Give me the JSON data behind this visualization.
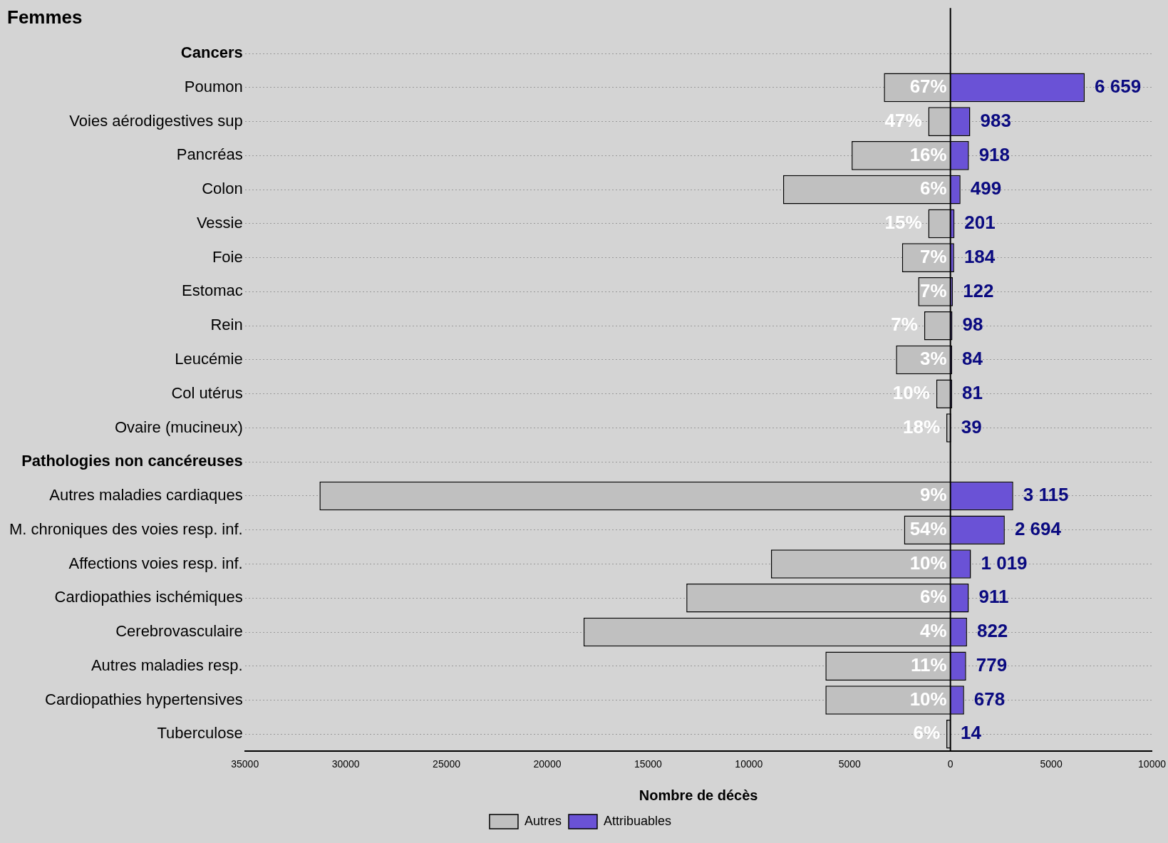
{
  "chart_data": {
    "type": "bar",
    "orientation": "horizontal",
    "stacked": true,
    "title": "Femmes",
    "xlabel": "Nombre de décès",
    "categories": [
      "Cancers",
      "Poumon",
      "Voies aérodigestives sup",
      "Pancréas",
      "Colon",
      "Vessie",
      "Foie",
      "Estomac",
      "Rein",
      "Leucémie",
      "Col utérus",
      "Ovaire (mucineux)",
      "Pathologies non cancéreuses",
      "Autres maladies cardiaques",
      "M. chroniques des voies resp. inf.",
      "Affections voies resp. inf.",
      "Cardiopathies ischémiques",
      "Cerebrovasculaire",
      "Autres maladies resp.",
      "Cardiopathies hypertensives",
      "Tuberculose"
    ],
    "series": [
      {
        "name": "Autres",
        "color": "#c0c0c0",
        "values": [
          null,
          -3300,
          -1100,
          -4900,
          -8300,
          -1100,
          -2400,
          -1600,
          -1300,
          -2700,
          -700,
          -200,
          null,
          -31300,
          -2300,
          -8900,
          -13100,
          -18200,
          -6200,
          -6200,
          -200
        ]
      },
      {
        "name": "Attribuables",
        "color": "#6a52d6",
        "values": [
          null,
          6659,
          983,
          918,
          499,
          201,
          184,
          122,
          98,
          84,
          81,
          39,
          null,
          3115,
          2694,
          1019,
          911,
          822,
          779,
          678,
          14
        ],
        "value_labels": [
          null,
          "6 659",
          "983",
          "918",
          "499",
          "201",
          "184",
          "122",
          "98",
          "84",
          "81",
          "39",
          null,
          "3 115",
          "2 694",
          "1 019",
          "911",
          "822",
          "779",
          "678",
          "14"
        ]
      }
    ],
    "xlim": [
      -35000,
      10000
    ],
    "xticks": [
      {
        "value": -35000,
        "label": "35000"
      },
      {
        "value": -30000,
        "label": "30000"
      },
      {
        "value": -25000,
        "label": "25000"
      },
      {
        "value": -20000,
        "label": "20000"
      },
      {
        "value": -15000,
        "label": "15000"
      },
      {
        "value": -10000,
        "label": "10000"
      },
      {
        "value": -5000,
        "label": "5000"
      },
      0,
      5000,
      10000
    ],
    "ref_lines": [
      {
        "axis": "x",
        "value": 0,
        "color": "#000000"
      }
    ],
    "annotations": [
      {
        "text": "67%",
        "y": "Poumon"
      },
      {
        "text": "47%",
        "x": -1100,
        "y": "Voies aérodigestives sup"
      },
      {
        "text": "16%",
        "y": "Pancréas"
      },
      {
        "text": "6%",
        "y": "Colon"
      },
      {
        "text": "15%",
        "x": -1100,
        "y": "Vessie"
      },
      {
        "text": "7%",
        "y": "Foie"
      },
      {
        "text": "7%",
        "y": "Estomac"
      },
      {
        "text": "7%",
        "x": -1300,
        "y": "Rein"
      },
      {
        "text": "3%",
        "y": "Leucémie"
      },
      {
        "text": "10%",
        "x": -700,
        "y": "Col utérus"
      },
      {
        "text": "18%",
        "x": -200,
        "y": "Ovaire (mucineux)"
      },
      {
        "text": "9%",
        "y": "Autres maladies cardiaques"
      },
      {
        "text": "54%",
        "y": "M. chroniques des voies resp. inf."
      },
      {
        "text": "10%",
        "y": "Affections voies resp. inf."
      },
      {
        "text": "6%",
        "y": "Cardiopathies ischémiques"
      },
      {
        "text": "4%",
        "y": "Cerebrovasculaire"
      },
      {
        "text": "11%",
        "y": "Autres maladies resp."
      },
      {
        "text": "10%",
        "y": "Cardiopathies hypertensives"
      },
      {
        "text": "6%",
        "x": -200,
        "y": "Tuberculose"
      }
    ],
    "grid": "y",
    "legend": "bottom"
  }
}
